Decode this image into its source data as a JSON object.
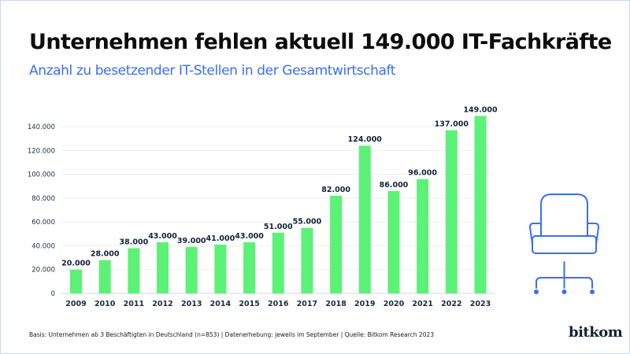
{
  "title": "Unternehmen fehlen aktuell 149.000 IT-Fachkräfte",
  "subtitle": "Anzahl zu besetzender IT-Stellen in der Gesamtwirtschaft",
  "footnote": "Basis: Unternehmen ab 3 Beschäftigten in Deutschland (n=853) | Datenerhebung: jeweils im September | Quelle: Bitkom Research 2023",
  "logo": "bitkom",
  "illustration": "office-chair-icon",
  "colors": {
    "bar": "#5cf277",
    "accent": "#3a6ff2",
    "text": "#13233a",
    "grid": "#eeeeee"
  },
  "chart_data": {
    "type": "bar",
    "title": "Unternehmen fehlen aktuell 149.000 IT-Fachkräfte",
    "subtitle": "Anzahl zu besetzender IT-Stellen in der Gesamtwirtschaft",
    "xlabel": "",
    "ylabel": "",
    "categories": [
      "2009",
      "2010",
      "2011",
      "2012",
      "2013",
      "2014",
      "2015",
      "2016",
      "2017",
      "2018",
      "2019",
      "2020",
      "2021",
      "2022",
      "2023"
    ],
    "values": [
      20000,
      28000,
      38000,
      43000,
      39000,
      41000,
      43000,
      51000,
      55000,
      82000,
      124000,
      86000,
      96000,
      137000,
      149000
    ],
    "data_labels": [
      "20.000",
      "28.000",
      "38.000",
      "43.000",
      "39.000",
      "41.000",
      "43.000",
      "51.000",
      "55.000",
      "82.000",
      "124.000",
      "86.000",
      "96.000",
      "137.000",
      "149.000"
    ],
    "ylim": [
      0,
      140000
    ],
    "yticks": [
      0,
      20000,
      40000,
      60000,
      80000,
      100000,
      120000,
      140000
    ],
    "ytick_labels": [
      "0",
      "20.000",
      "40.000",
      "60.000",
      "80.000",
      "100.000",
      "120.000",
      "140.000"
    ],
    "grid": true,
    "legend": "none"
  }
}
